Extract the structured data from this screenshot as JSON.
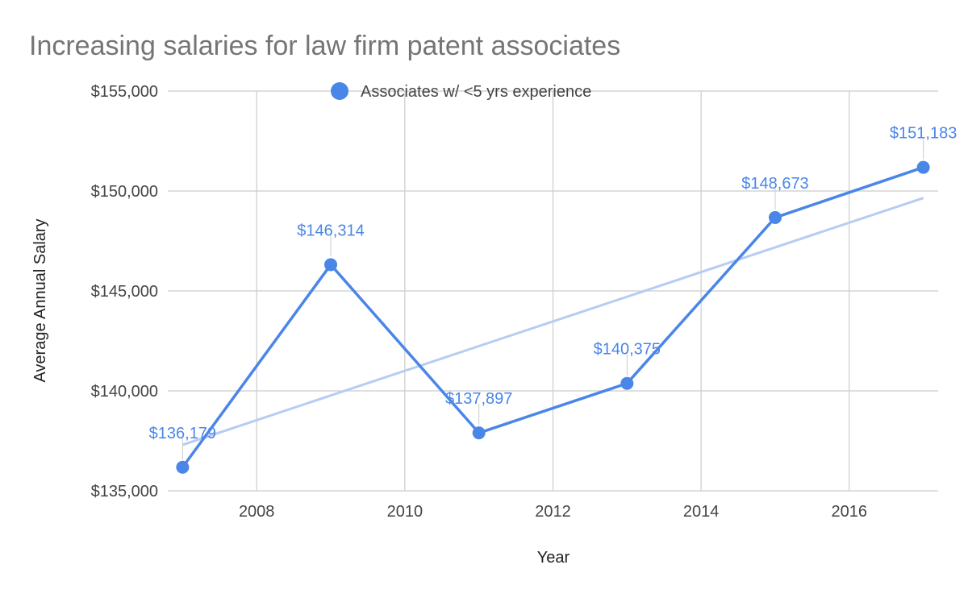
{
  "colors": {
    "series": "#4a86e8",
    "trend": "#b6cdf3",
    "grid": "#cccccc",
    "title": "#757575",
    "label_leader": "#cccccc"
  },
  "chart_data": {
    "type": "line",
    "title": "Increasing salaries for law firm patent associates",
    "xlabel": "Year",
    "ylabel": "Average Annual Salary",
    "xlim": [
      2006.8,
      2017.2
    ],
    "ylim": [
      135000,
      155000
    ],
    "x_ticks": [
      2008,
      2010,
      2012,
      2014,
      2016
    ],
    "x_tick_labels": [
      "2008",
      "2010",
      "2012",
      "2014",
      "2016"
    ],
    "y_ticks": [
      135000,
      140000,
      145000,
      150000,
      155000
    ],
    "y_tick_labels": [
      "$135,000",
      "$140,000",
      "$145,000",
      "$150,000",
      "$155,000"
    ],
    "grid": true,
    "legend": {
      "position": "top",
      "entries": [
        "Associates w/ <5 yrs experience"
      ]
    },
    "series": [
      {
        "name": "Associates w/ <5 yrs experience",
        "x": [
          2007,
          2009,
          2011,
          2013,
          2015,
          2017
        ],
        "values": [
          136179,
          146314,
          137897,
          140375,
          148673,
          151183
        ],
        "data_labels": [
          "$136,179",
          "$146,314",
          "$137,897",
          "$140,375",
          "$148,673",
          "$151,183"
        ],
        "markers": true
      }
    ],
    "trendline": {
      "type": "linear",
      "x": [
        2007,
        2017
      ],
      "values": [
        137300,
        149650
      ]
    }
  }
}
